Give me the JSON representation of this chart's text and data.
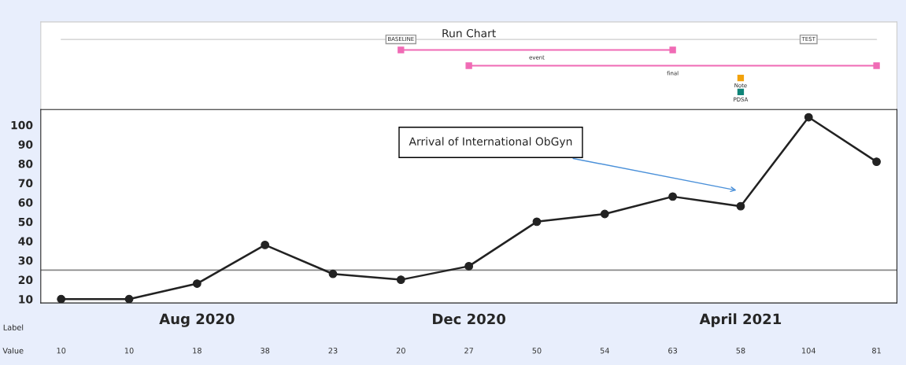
{
  "chart_data": {
    "type": "line",
    "title": "Run Chart",
    "categories": [
      null,
      null,
      "Aug 2020",
      null,
      null,
      null,
      "Dec 2020",
      null,
      null,
      null,
      "April 2021",
      null,
      null
    ],
    "series": [
      {
        "color": "#222222",
        "values": [
          10,
          10,
          18,
          38,
          23,
          20,
          27,
          50,
          54,
          63,
          58,
          104,
          81
        ],
        "value_labels": [
          "10",
          "10",
          "18",
          "38",
          "23",
          "20",
          "27",
          "50",
          "54",
          "63",
          "58",
          "104",
          "81"
        ]
      }
    ],
    "marker": "circle",
    "line_style": "solid",
    "ylim": [
      8,
      108
    ],
    "yticks": [
      10,
      20,
      30,
      40,
      50,
      60,
      70,
      80,
      90,
      100
    ],
    "ref_lines": [
      {
        "axis": "y",
        "value": 25,
        "color": "#888888",
        "line_style": "solid"
      }
    ],
    "annotations": [
      "Arrival of International ObGyn",
      "BASELINE",
      "TEST",
      "event",
      "final",
      "Note",
      "PDSA",
      "Label",
      "Value"
    ],
    "grid": false,
    "legend": false
  }
}
